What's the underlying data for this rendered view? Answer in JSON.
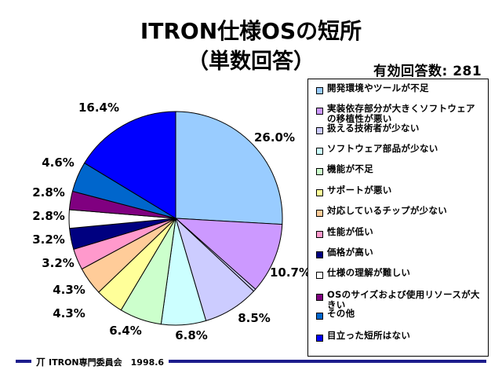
{
  "title": "ITRON仕様OSの短所",
  "subtitle": "（単数回答）",
  "valid_responses": "有効回答数: 281",
  "footer": {
    "logo": "丌",
    "text": "ITRON専門委員会　1998.6"
  },
  "chart_data": {
    "type": "pie",
    "title": "ITRON仕様OSの短所",
    "subtitle": "（単数回答）",
    "start": "12 o'clock, clockwise",
    "slices": [
      {
        "label": "開発環境やツールが不足",
        "value": 26.0,
        "value_label": "26.0%",
        "color": "#99ccff"
      },
      {
        "label": "実装依存部分が大きくソフトウェアの移植性が悪い",
        "value": 10.7,
        "value_label": "10.7%",
        "color": "#cc99ff"
      },
      {
        "label": "扱える技術者が少ない",
        "value": 0.4,
        "value_label": "",
        "color": "#ccccff"
      },
      {
        "label": "扱える技術者が少ない",
        "value": 8.5,
        "value_label": "8.5%",
        "color": "#ccccff"
      },
      {
        "label": "ソフトウェア部品が少ない",
        "value": 6.8,
        "value_label": "6.8%",
        "color": "#ccffff"
      },
      {
        "label": "機能が不足",
        "value": 6.4,
        "value_label": "6.4%",
        "color": "#ccffcc"
      },
      {
        "label": "サポートが悪い",
        "value": 4.3,
        "value_label": "4.3%",
        "color": "#ffff99"
      },
      {
        "label": "対応しているチップが少ない",
        "value": 4.3,
        "value_label": "4.3%",
        "color": "#ffcc99"
      },
      {
        "label": "性能が低い",
        "value": 3.2,
        "value_label": "3.2%",
        "color": "#ff99cc"
      },
      {
        "label": "価格が高い",
        "value": 3.2,
        "value_label": "3.2%",
        "color": "#000080"
      },
      {
        "label": "仕様の理解が難しい",
        "value": 2.8,
        "value_label": "2.8%",
        "color": "#ffffff"
      },
      {
        "label": "OSのサイズおよび使用リソースが大きい",
        "value": 2.8,
        "value_label": "2.8%",
        "color": "#800080"
      },
      {
        "label": "その他",
        "value": 4.6,
        "value_label": "4.6%",
        "color": "#0066cc"
      },
      {
        "label": "目立った短所はない",
        "value": 16.4,
        "value_label": "16.4%",
        "color": "#0000ff"
      }
    ],
    "legend": {
      "placement": "right",
      "items": [
        {
          "label": "開発環境やツールが不足",
          "color": "#99ccff"
        },
        {
          "label": "実装依存部分が大きくソフトウェアの移植性が悪い",
          "color": "#cc99ff"
        },
        {
          "label": "扱える技術者が少ない",
          "color": "#ccccff"
        },
        {
          "label": "ソフトウェア部品が少ない",
          "color": "#ccffff"
        },
        {
          "label": "機能が不足",
          "color": "#ccffcc"
        },
        {
          "label": "サポートが悪い",
          "color": "#ffff99"
        },
        {
          "label": "対応しているチップが少ない",
          "color": "#ffcc99"
        },
        {
          "label": "性能が低い",
          "color": "#ff99cc"
        },
        {
          "label": "価格が高い",
          "color": "#000080"
        },
        {
          "label": "仕様の理解が難しい",
          "color": "#ffffff"
        },
        {
          "label": "OSのサイズおよび使用リソースが大きい",
          "color": "#800080"
        },
        {
          "label": "その他",
          "color": "#0066cc"
        },
        {
          "label": "目立った短所はない",
          "color": "#0000ff"
        }
      ]
    }
  }
}
